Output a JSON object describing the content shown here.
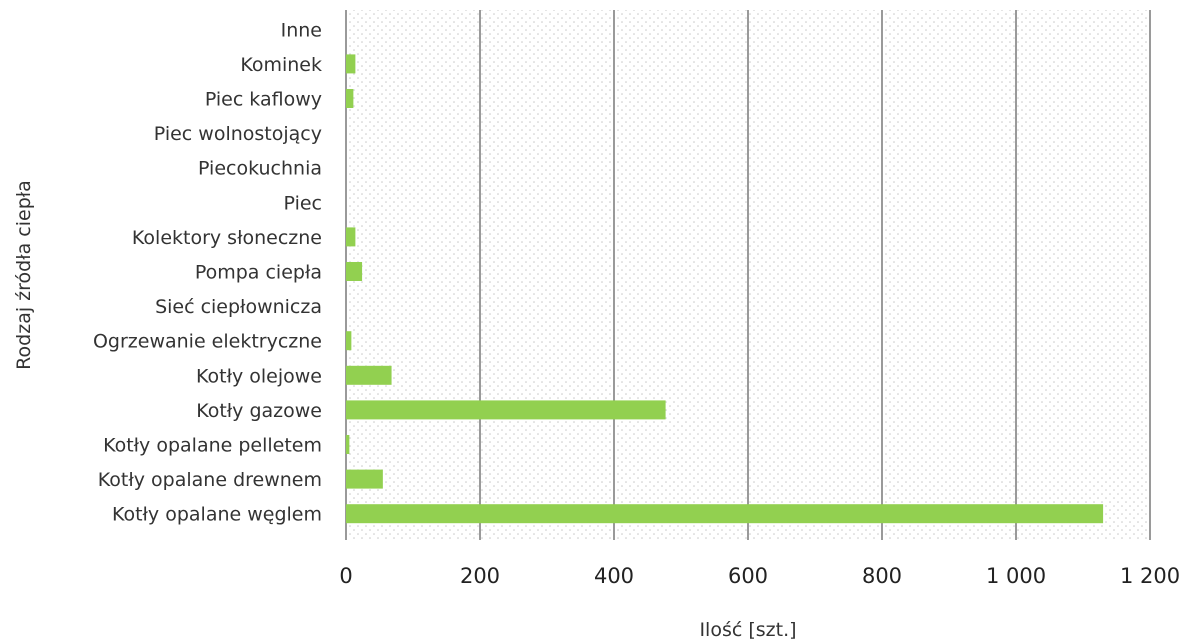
{
  "chart_data": {
    "type": "bar",
    "orientation": "horizontal",
    "categories": [
      "Kotły opalane węglem",
      "Kotły opalane drewnem",
      "Kotły opalane pelletem",
      "Kotły gazowe",
      "Kotły olejowe",
      "Ogrzewanie elektryczne",
      "Sieć ciepłownicza",
      "Pompa ciepła",
      "Kolektory słoneczne",
      "Piec",
      "Piecokuchnia",
      "Piec wolnostojący",
      "Piec kaflowy",
      "Kominek",
      "Inne"
    ],
    "values": [
      1130,
      55,
      5,
      477,
      68,
      8,
      0,
      24,
      14,
      0,
      0,
      0,
      11,
      14,
      0
    ],
    "xlabel": "Ilość [szt.]",
    "ylabel": "Rodzaj źródła ciepła",
    "xlim": [
      0,
      1200
    ],
    "xticks": [
      0,
      200,
      400,
      600,
      800,
      1000,
      1200
    ],
    "xtick_labels": [
      "0",
      "200",
      "400",
      "600",
      "800",
      "1 000",
      "1 200"
    ],
    "grid": "vertical",
    "legend": "none",
    "colors": {
      "bar": "#92d050",
      "grid": "#9a9a9a",
      "plot_dots": "#c8c8c8"
    }
  }
}
